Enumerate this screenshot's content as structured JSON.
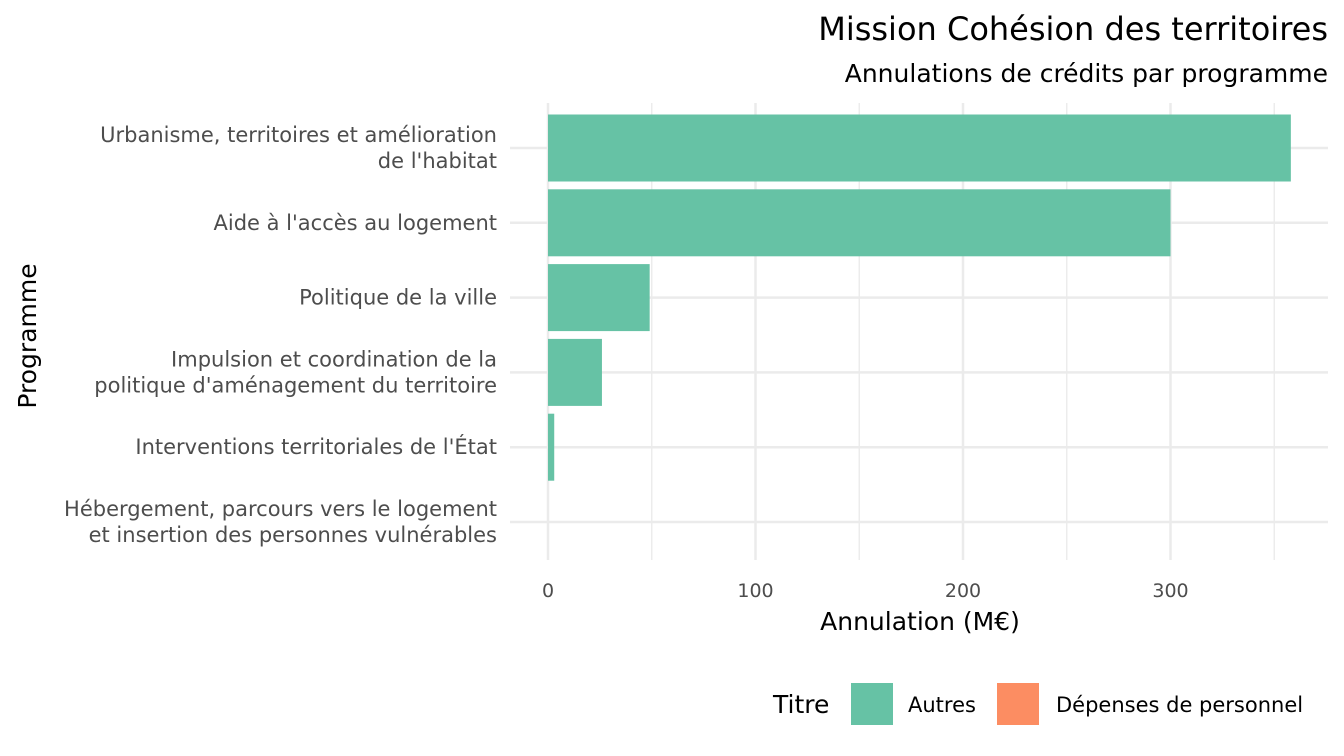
{
  "chart_data": {
    "type": "bar",
    "orientation": "horizontal",
    "title": "Mission Cohésion des territoires",
    "subtitle": "Annulations de crédits par programme",
    "xlabel": "Annulation (M€)",
    "ylabel": "Programme",
    "xlim": [
      0,
      360
    ],
    "xticks": [
      0,
      100,
      200,
      300
    ],
    "grid": true,
    "categories": [
      [
        "Urbanisme, territoires et amélioration",
        "de l'habitat"
      ],
      [
        "Aide à l'accès au logement"
      ],
      [
        "Politique de la ville"
      ],
      [
        "Impulsion et coordination de la",
        "politique d'aménagement du territoire"
      ],
      [
        "Interventions territoriales de l'État"
      ],
      [
        "Hébergement, parcours vers le logement",
        "et insertion des personnes vulnérables"
      ]
    ],
    "series": [
      {
        "name": "Autres",
        "color": "#66c2a5",
        "values": [
          358,
          300,
          49,
          26,
          3,
          0
        ]
      },
      {
        "name": "Dépenses de personnel",
        "color": "#fc8d62",
        "values": [
          0,
          0,
          0,
          0,
          0,
          0
        ]
      }
    ],
    "legend": {
      "title": "Titre",
      "position": "bottom-right"
    }
  }
}
